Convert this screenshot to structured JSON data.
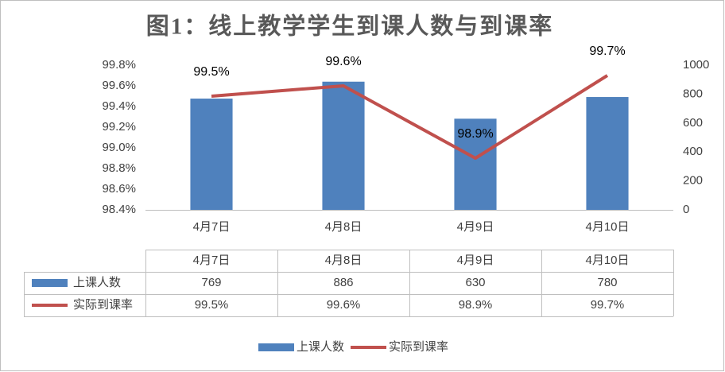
{
  "chart_data": {
    "type": "combo",
    "title": "图1：线上教学学生到课人数与到课率",
    "categories": [
      "4月7日",
      "4月8日",
      "4月9日",
      "4月10日"
    ],
    "series": [
      {
        "name": "上课人数",
        "type": "bar",
        "color": "#4f81bd",
        "axis": "y2",
        "values": [
          769,
          886,
          630,
          780
        ]
      },
      {
        "name": "实际到课率",
        "type": "line",
        "color": "#c0504d",
        "values": [
          99.5,
          99.6,
          98.9,
          99.7
        ],
        "value_labels": [
          "99.5%",
          "99.6%",
          "98.9%",
          "99.7%"
        ]
      }
    ],
    "ylim": [
      98.4,
      99.8
    ],
    "yticks": [
      {
        "value": 98.4,
        "label": "98.4%"
      },
      {
        "value": 98.6,
        "label": "98.6%"
      },
      {
        "value": 98.8,
        "label": "98.8%"
      },
      {
        "value": 99.0,
        "label": "99.0%"
      },
      {
        "value": 99.2,
        "label": "99.2%"
      },
      {
        "value": 99.4,
        "label": "99.4%"
      },
      {
        "value": 99.6,
        "label": "99.6%"
      },
      {
        "value": 99.8,
        "label": "99.8%"
      }
    ],
    "y2lim": [
      0,
      1000
    ],
    "y2ticks": [
      0,
      200,
      400,
      600,
      800,
      1000
    ],
    "grid": false,
    "data_table": true,
    "legend": "bottom"
  }
}
